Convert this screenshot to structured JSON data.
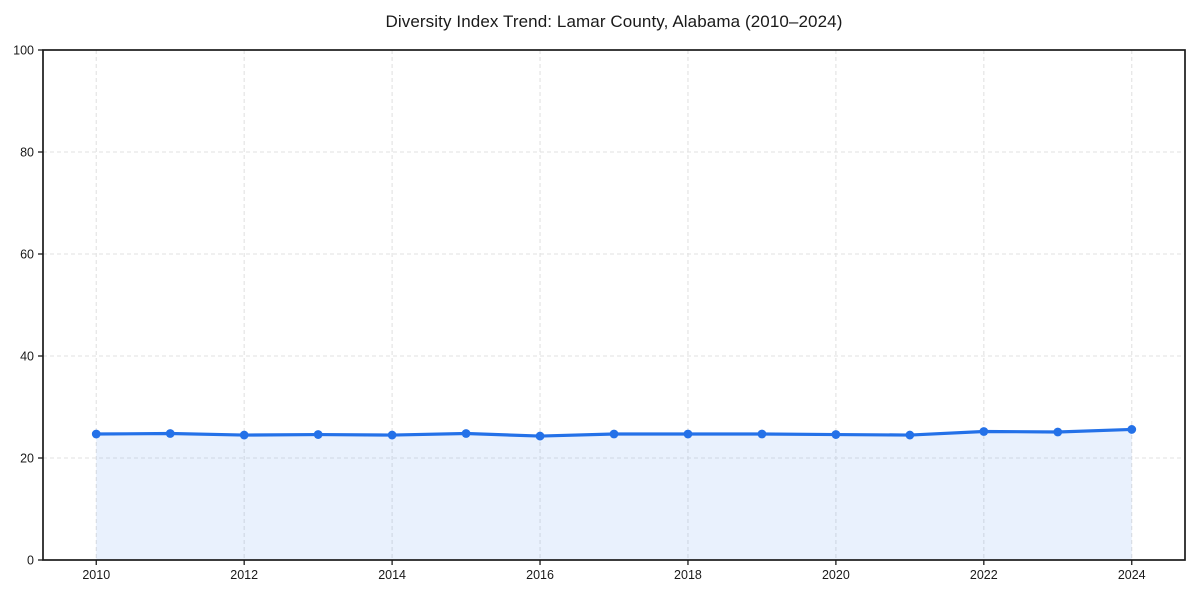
{
  "chart_data": {
    "type": "area",
    "title": "Diversity Index Trend: Lamar County, Alabama (2010–2024)",
    "x": [
      2010,
      2011,
      2012,
      2013,
      2014,
      2015,
      2016,
      2017,
      2018,
      2019,
      2020,
      2021,
      2022,
      2023,
      2024
    ],
    "series": [
      {
        "name": "Diversity Index",
        "values": [
          24.7,
          24.8,
          24.5,
          24.6,
          24.5,
          24.8,
          24.3,
          24.7,
          24.7,
          24.7,
          24.6,
          24.5,
          25.2,
          25.1,
          25.6
        ]
      }
    ],
    "xlabel": "",
    "ylabel": "",
    "xticks": [
      2010,
      2012,
      2014,
      2016,
      2018,
      2020,
      2022,
      2024
    ],
    "yticks": [
      0,
      20,
      40,
      60,
      80,
      100
    ],
    "xlim": [
      2009.28,
      2024.72
    ],
    "ylim": [
      0,
      100
    ],
    "grid": true,
    "grid_style": "dashed",
    "legend_position": "none",
    "colors": {
      "line": "#2471e8",
      "marker": "#2471e8",
      "fill": "#2471e8",
      "fill_opacity": 0.1,
      "grid": "#e2e2e2",
      "spine": "#1a1a1a",
      "tick_text": "#1a1a1a",
      "background": "#ffffff"
    }
  }
}
